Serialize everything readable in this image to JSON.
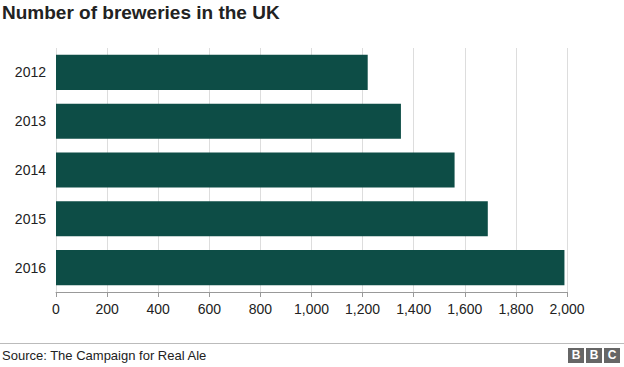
{
  "chart_data": {
    "type": "bar",
    "orientation": "horizontal",
    "title": "Number of breweries in the UK",
    "source": "Source: The Campaign for Real Ale",
    "credit": "BBC",
    "categories": [
      "2012",
      "2013",
      "2014",
      "2015",
      "2016"
    ],
    "values": [
      1220,
      1350,
      1560,
      1690,
      1990
    ],
    "color": "#0d4d46",
    "xlim": [
      0,
      2000
    ],
    "xticks": [
      0,
      200,
      400,
      600,
      800,
      {
        "value": 1000,
        "label": "1,000"
      },
      {
        "value": 1200,
        "label": "1,200"
      },
      {
        "value": 1400,
        "label": "1,400"
      },
      {
        "value": 1600,
        "label": "1,600"
      },
      {
        "value": 1800,
        "label": "1,800"
      },
      {
        "value": 2000,
        "label": "2,000"
      }
    ],
    "grid": true
  }
}
